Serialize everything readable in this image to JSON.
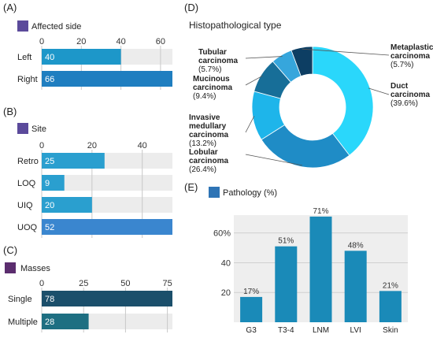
{
  "chart_data": [
    {
      "panel": "(A)",
      "type": "bar",
      "orientation": "horizontal",
      "legend": "Affected side",
      "categories": [
        "Left",
        "Right"
      ],
      "values": [
        40,
        66
      ],
      "xlim": [
        0,
        66
      ],
      "xticks": [
        0,
        20,
        40,
        60
      ],
      "grid": true,
      "colors": [
        "#1d97c9",
        "#1f7ec0"
      ],
      "legend_color": "#5b4a9b",
      "track_color": "#ececec"
    },
    {
      "panel": "(B)",
      "type": "bar",
      "orientation": "horizontal",
      "legend": "Site",
      "categories": [
        "Retro",
        "LOQ",
        "UIQ",
        "UOQ"
      ],
      "values": [
        25,
        9,
        20,
        52
      ],
      "xlim": [
        0,
        52
      ],
      "xticks": [
        0,
        20,
        40
      ],
      "grid": true,
      "colors": [
        "#2a9fcf",
        "#2a9fcf",
        "#2a9fcf",
        "#3a86cf"
      ],
      "legend_color": "#5b4a9b",
      "track_color": "#ececec"
    },
    {
      "panel": "(C)",
      "type": "bar",
      "orientation": "horizontal",
      "legend": "Masses",
      "categories": [
        "Single",
        "Multiple"
      ],
      "values": [
        78,
        28
      ],
      "xlim": [
        0,
        78
      ],
      "xticks": [
        0,
        25,
        50,
        75
      ],
      "grid": true,
      "colors": [
        "#1b4f6b",
        "#1e6f82"
      ],
      "legend_color": "#5b2d6e",
      "track_color": "#ececec"
    },
    {
      "panel": "(D)",
      "type": "pie",
      "donut": true,
      "title": "Histopathological type",
      "slices": [
        {
          "label": "Duct carcinoma",
          "pct": "(39.6%)",
          "value": 39.6,
          "color": "#2ad7fb"
        },
        {
          "label": "Lobular carcinoma",
          "pct": "(26.4%)",
          "value": 26.4,
          "color": "#1f8cc6"
        },
        {
          "label": "Invasive medullary carcinoma",
          "pct": "(13.2%)",
          "value": 13.2,
          "color": "#1eb5ea"
        },
        {
          "label": "Mucinous carcinoma",
          "pct": "(9.4%)",
          "value": 9.4,
          "color": "#176e98"
        },
        {
          "label": "Tubular carcinoma",
          "pct": "(5.7%)",
          "value": 5.7,
          "color": "#36a6dc"
        },
        {
          "label": "Metaplastic carcinoma",
          "pct": "(5.7%)",
          "value": 5.7,
          "color": "#0d3e63"
        }
      ]
    },
    {
      "panel": "(E)",
      "type": "bar",
      "orientation": "vertical",
      "legend": "Pathology (%)",
      "categories": [
        "G3",
        "T3-4",
        "LNM",
        "LVI",
        "Skin"
      ],
      "values": [
        17,
        51,
        71,
        48,
        21
      ],
      "labels": [
        "17%",
        "51%",
        "71%",
        "48%",
        "21%"
      ],
      "ylim": [
        0,
        72
      ],
      "yticks": [
        20,
        40,
        60
      ],
      "ytick_labels": [
        "20",
        "40",
        "60%"
      ],
      "grid": true,
      "bar_color": "#1a8ab8",
      "legend_color": "#2e74b5",
      "plot_bg": "#eeeeee"
    }
  ]
}
